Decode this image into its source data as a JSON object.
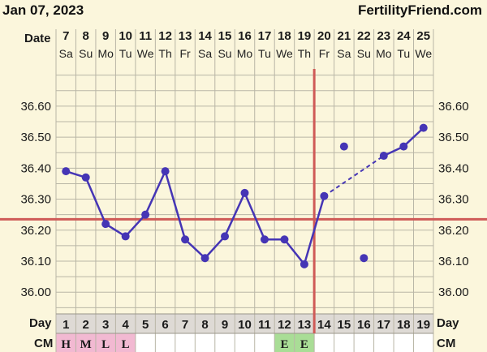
{
  "header": {
    "date": "Jan 07, 2023",
    "site": "FertilityFriend.com"
  },
  "labels": {
    "date": "Date",
    "day": "Day",
    "cm": "CM"
  },
  "colors": {
    "background": "#fbf6dc",
    "grid": "#b9b6a6",
    "series": "#4535b5",
    "reference": "#cf5a57",
    "cm_pink": "#f2b9d2",
    "cm_green": "#a9dd96",
    "day_row": "#dedad5"
  },
  "chart_data": {
    "type": "line",
    "title": "",
    "dates": [
      "7",
      "8",
      "9",
      "10",
      "11",
      "12",
      "13",
      "14",
      "15",
      "16",
      "17",
      "18",
      "19",
      "20",
      "21",
      "22",
      "23",
      "24",
      "25"
    ],
    "weekdays": [
      "Sa",
      "Su",
      "Mo",
      "Tu",
      "We",
      "Th",
      "Fr",
      "Sa",
      "Su",
      "Mo",
      "Tu",
      "We",
      "Th",
      "Fr",
      "Sa",
      "Su",
      "Mo",
      "Tu",
      "We"
    ],
    "cycle_days": [
      "1",
      "2",
      "3",
      "4",
      "5",
      "6",
      "7",
      "8",
      "9",
      "10",
      "11",
      "12",
      "13",
      "14",
      "15",
      "16",
      "17",
      "18",
      "19"
    ],
    "y_ticks": [
      "36.60",
      "36.50",
      "36.40",
      "36.30",
      "36.20",
      "36.10",
      "36.00"
    ],
    "ylim": [
      35.93,
      36.72
    ],
    "series": [
      {
        "temps": [
          36.39,
          36.37,
          36.22,
          36.18,
          36.25,
          36.39,
          36.17,
          36.11,
          36.18,
          36.32,
          36.17,
          36.17,
          36.09,
          36.31,
          36.47,
          36.11,
          36.44,
          36.47,
          36.53
        ],
        "discarded_days": [
          15,
          16
        ],
        "dashed_after_day": 14
      }
    ],
    "coverline": 36.235,
    "ovulation_day": 13,
    "cervical_mucus": [
      "H",
      "M",
      "L",
      "L",
      "",
      "",
      "",
      "",
      "",
      "",
      "",
      "E",
      "E",
      "",
      "",
      "",
      "",
      "",
      ""
    ]
  }
}
